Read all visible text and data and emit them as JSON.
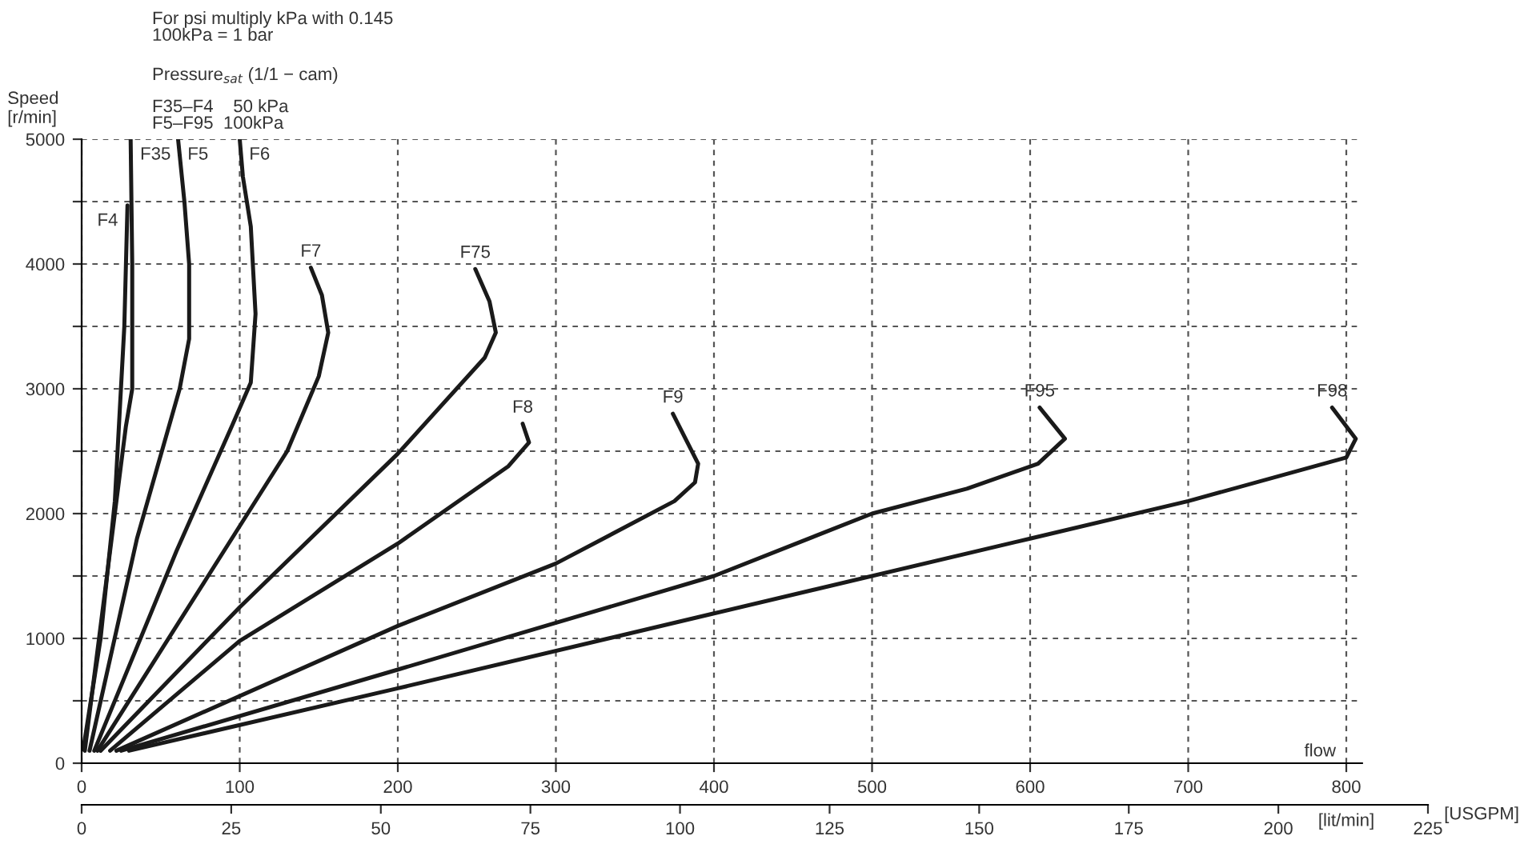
{
  "chart_data": {
    "type": "line",
    "annotations": [
      "For psi multiply kPa with 0.145\n100kPa = 1 bar",
      "Pressure$_{sat}$ (1/1 − cam)",
      "F35–F4    50 kPa\nF5–F95  100kPa",
      "flow"
    ],
    "xlabel": "[lit/min]",
    "ylabel": "Speed\n[r/min]",
    "x2label": "[USGPM]",
    "xlim": [
      0,
      810
    ],
    "ylim": [
      0,
      5000
    ],
    "xticks": [
      0,
      100,
      200,
      300,
      400,
      500,
      600,
      700,
      800
    ],
    "yticks": [
      0,
      {
        "value": 500,
        "label": null
      },
      1000,
      {
        "value": 1500,
        "label": null
      },
      2000,
      {
        "value": 2500,
        "label": null
      },
      3000,
      {
        "value": 3500,
        "label": null
      },
      4000,
      {
        "value": 4500,
        "label": null
      },
      5000
    ],
    "x2lim": [
      0,
      225
    ],
    "x2ticks": [
      0,
      25,
      50,
      75,
      100,
      125,
      150,
      175,
      200,
      225
    ],
    "grid": true,
    "line_style": "solid",
    "marker": "none",
    "legend": false,
    "series": [
      {
        "name": "F4",
        "color": "#1a1a1a",
        "x": [
          1,
          12,
          21,
          27,
          29
        ],
        "values": [
          110,
          1000,
          2100,
          3500,
          4470
        ]
      },
      {
        "name": "F35",
        "color": "#1a1a1a",
        "x": [
          2,
          16,
          28,
          32,
          32,
          31
        ],
        "values": [
          100,
          1500,
          2700,
          3000,
          4000,
          5000
        ]
      },
      {
        "name": "F5",
        "color": "#1a1a1a",
        "x": [
          5,
          35,
          62,
          68,
          68,
          65,
          61
        ],
        "values": [
          100,
          1800,
          3000,
          3400,
          4000,
          4500,
          5000
        ]
      },
      {
        "name": "F6",
        "color": "#1a1a1a",
        "x": [
          8,
          60,
          95,
          107,
          110,
          107,
          102,
          100
        ],
        "values": [
          100,
          1700,
          2700,
          3050,
          3600,
          4300,
          4700,
          5000
        ]
      },
      {
        "name": "F7",
        "color": "#1a1a1a",
        "x": [
          10,
          80,
          130,
          150,
          156,
          152,
          145
        ],
        "values": [
          100,
          1500,
          2500,
          3100,
          3450,
          3750,
          3970
        ]
      },
      {
        "name": "F75",
        "color": "#1a1a1a",
        "x": [
          12,
          100,
          200,
          255,
          262,
          258,
          249
        ],
        "values": [
          100,
          1250,
          2480,
          3250,
          3450,
          3700,
          3960
        ]
      },
      {
        "name": "F8",
        "color": "#1a1a1a",
        "x": [
          18,
          100,
          200,
          270,
          283,
          279
        ],
        "values": [
          100,
          980,
          1760,
          2380,
          2570,
          2720
        ]
      },
      {
        "name": "F9",
        "color": "#1a1a1a",
        "x": [
          22,
          200,
          300,
          375,
          388,
          390,
          374
        ],
        "values": [
          100,
          1100,
          1600,
          2100,
          2250,
          2400,
          2800
        ]
      },
      {
        "name": "F95",
        "color": "#1a1a1a",
        "x": [
          25,
          200,
          400,
          500,
          560,
          605,
          622,
          606
        ],
        "values": [
          100,
          750,
          1500,
          2000,
          2200,
          2400,
          2600,
          2850
        ]
      },
      {
        "name": "F98",
        "color": "#1a1a1a",
        "x": [
          30,
          200,
          400,
          600,
          700,
          800,
          806,
          791
        ],
        "values": [
          100,
          600,
          1200,
          1800,
          2100,
          2450,
          2600,
          2850
        ]
      }
    ]
  }
}
